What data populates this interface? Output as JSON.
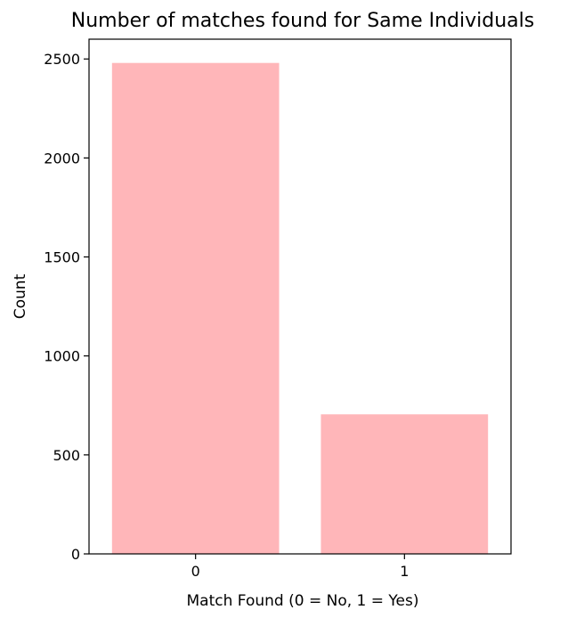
{
  "chart_data": {
    "type": "bar",
    "title": "Number of matches found for Same Individuals",
    "xlabel": "Match Found (0 = No, 1 = Yes)",
    "ylabel": "Count",
    "categories": [
      "0",
      "1"
    ],
    "values": [
      2480,
      705
    ],
    "ylim": [
      0,
      2600
    ],
    "yticks": [
      0,
      500,
      1000,
      1500,
      2000,
      2500
    ],
    "bar_color": "#ffb6b9",
    "grid": false,
    "legend": "none"
  }
}
